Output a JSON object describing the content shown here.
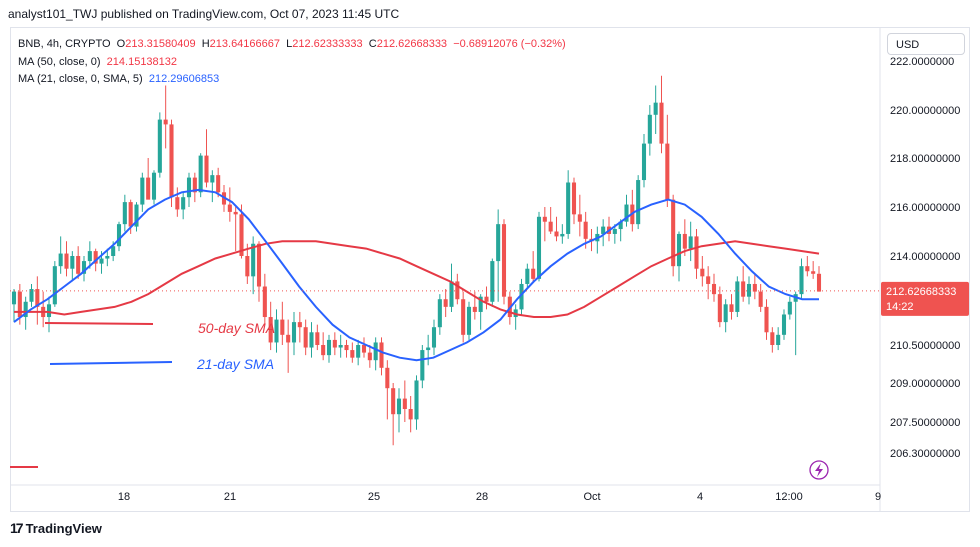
{
  "header": {
    "published": "analyst101_TWJ published on TradingView.com, Oct 07, 2023 11:45 UTC"
  },
  "legend": {
    "symbol": "BNB, 4h, CRYPTO",
    "o_key": "O",
    "o_val": "213.31580409",
    "h_key": "H",
    "h_val": "213.64166667",
    "l_key": "L",
    "l_val": "212.62333333",
    "c_key": "C",
    "c_val": "212.62668333",
    "change": "−0.68912076 (−0.32%)",
    "ma50_label": "MA (50, close, 0)",
    "ma50_val": "214.15138132",
    "ma21_label": "MA (21, close, 0, SMA, 5)",
    "ma21_val": "212.29606853"
  },
  "currency_button": "USD",
  "footer": {
    "brand": "TradingView",
    "logo": "17"
  },
  "colors": {
    "up": "#26a69a",
    "down": "#ef5350",
    "ma50": "#e53945",
    "ma21": "#2962ff",
    "price_tag": "#ef5350"
  },
  "chart_data": {
    "type": "candlestick",
    "symbol": "BNB",
    "timeframe": "4h",
    "y_ticks": [
      "222.0000000",
      "220.00000000",
      "218.00000000",
      "216.00000000",
      "214.00000000",
      "210.50000000",
      "209.00000000",
      "207.50000000",
      "206.30000000"
    ],
    "x_ticks": [
      "18",
      "21",
      "25",
      "28",
      "Oct",
      "4",
      "12:00",
      "9"
    ],
    "last_price": "212.62668333",
    "countdown": "14:22",
    "annotations": {
      "ma50": "50-day SMA",
      "ma21": "21-day SMA"
    },
    "candles_ohlc": [
      [
        212.1,
        212.7,
        211.4,
        212.6
      ],
      [
        212.6,
        212.9,
        211.3,
        211.6
      ],
      [
        211.6,
        212.4,
        211.1,
        212.2
      ],
      [
        212.2,
        212.9,
        212.0,
        212.7
      ],
      [
        212.7,
        213.2,
        211.3,
        212.0
      ],
      [
        212.0,
        212.6,
        211.2,
        211.6
      ],
      [
        211.6,
        212.4,
        211.0,
        212.1
      ],
      [
        212.1,
        213.8,
        212.0,
        213.6
      ],
      [
        213.6,
        214.8,
        213.3,
        214.1
      ],
      [
        214.1,
        214.6,
        213.2,
        213.5
      ],
      [
        213.5,
        214.2,
        213.0,
        214.0
      ],
      [
        214.0,
        214.4,
        213.1,
        213.3
      ],
      [
        213.3,
        214.0,
        213.0,
        213.8
      ],
      [
        213.8,
        214.6,
        213.5,
        214.2
      ],
      [
        214.2,
        214.3,
        213.4,
        213.7
      ],
      [
        213.7,
        214.2,
        213.3,
        213.9
      ],
      [
        213.9,
        214.3,
        213.6,
        214.0
      ],
      [
        214.0,
        214.6,
        213.8,
        214.4
      ],
      [
        214.4,
        215.4,
        214.2,
        215.3
      ],
      [
        215.3,
        216.5,
        215.0,
        216.2
      ],
      [
        216.2,
        216.3,
        214.9,
        215.2
      ],
      [
        215.2,
        216.2,
        215.0,
        216.1
      ],
      [
        216.1,
        217.4,
        215.8,
        217.2
      ],
      [
        217.2,
        218.0,
        216.7,
        216.3
      ],
      [
        216.3,
        217.5,
        216.1,
        217.4
      ],
      [
        217.4,
        219.9,
        217.2,
        219.6
      ],
      [
        219.6,
        221.0,
        218.4,
        219.4
      ],
      [
        219.4,
        219.6,
        216.0,
        216.4
      ],
      [
        216.4,
        216.8,
        215.6,
        215.9
      ],
      [
        215.9,
        216.6,
        215.5,
        216.4
      ],
      [
        216.4,
        217.4,
        216.0,
        217.2
      ],
      [
        217.2,
        217.4,
        216.2,
        216.6
      ],
      [
        216.6,
        218.2,
        216.4,
        218.1
      ],
      [
        218.1,
        219.2,
        216.8,
        217.0
      ],
      [
        217.0,
        217.5,
        216.2,
        217.3
      ],
      [
        217.3,
        217.6,
        216.4,
        216.6
      ],
      [
        216.6,
        216.9,
        215.8,
        216.1
      ],
      [
        216.1,
        216.8,
        215.4,
        215.8
      ],
      [
        215.8,
        216.0,
        214.2,
        215.7
      ],
      [
        215.7,
        216.1,
        213.9,
        214.0
      ],
      [
        214.0,
        214.5,
        212.9,
        213.2
      ],
      [
        213.2,
        214.8,
        212.5,
        214.5
      ],
      [
        214.5,
        214.6,
        212.2,
        212.8
      ],
      [
        212.8,
        213.3,
        211.3,
        211.6
      ],
      [
        211.6,
        212.2,
        210.3,
        210.6
      ],
      [
        210.6,
        211.9,
        210.2,
        211.5
      ],
      [
        211.5,
        212.2,
        210.5,
        210.9
      ],
      [
        210.9,
        211.5,
        209.4,
        210.6
      ],
      [
        210.6,
        211.8,
        210.1,
        211.4
      ],
      [
        211.4,
        211.8,
        210.6,
        211.2
      ],
      [
        211.2,
        211.5,
        210.1,
        210.4
      ],
      [
        210.4,
        211.4,
        210.0,
        211.0
      ],
      [
        211.0,
        211.3,
        210.3,
        210.5
      ],
      [
        210.5,
        211.0,
        209.9,
        210.1
      ],
      [
        210.1,
        210.9,
        209.8,
        210.7
      ],
      [
        210.7,
        211.0,
        210.1,
        210.4
      ],
      [
        210.4,
        210.9,
        210.0,
        210.5
      ],
      [
        210.5,
        210.7,
        210.0,
        210.3
      ],
      [
        210.3,
        210.6,
        209.8,
        210.0
      ],
      [
        210.0,
        210.7,
        209.7,
        210.5
      ],
      [
        210.5,
        210.8,
        210.0,
        210.2
      ],
      [
        210.2,
        210.5,
        209.6,
        209.9
      ],
      [
        209.9,
        210.8,
        209.5,
        210.6
      ],
      [
        210.6,
        210.8,
        209.3,
        209.6
      ],
      [
        209.6,
        209.9,
        207.6,
        208.8
      ],
      [
        208.8,
        209.0,
        206.6,
        207.8
      ],
      [
        207.8,
        208.8,
        207.1,
        208.4
      ],
      [
        208.4,
        209.1,
        207.5,
        208.0
      ],
      [
        208.0,
        208.5,
        207.1,
        207.6
      ],
      [
        207.6,
        209.3,
        207.2,
        209.1
      ],
      [
        209.1,
        210.5,
        208.8,
        210.3
      ],
      [
        210.3,
        210.9,
        209.7,
        210.4
      ],
      [
        210.4,
        211.5,
        210.1,
        211.2
      ],
      [
        211.2,
        212.5,
        210.9,
        212.3
      ],
      [
        212.3,
        212.7,
        211.6,
        212.0
      ],
      [
        212.0,
        213.7,
        211.8,
        213.0
      ],
      [
        213.0,
        213.3,
        212.1,
        212.3
      ],
      [
        212.3,
        212.6,
        210.6,
        210.9
      ],
      [
        210.9,
        212.2,
        210.7,
        212.0
      ],
      [
        212.0,
        212.6,
        211.5,
        211.8
      ],
      [
        211.8,
        212.5,
        211.1,
        212.4
      ],
      [
        212.4,
        212.8,
        211.9,
        212.2
      ],
      [
        212.2,
        213.9,
        212.0,
        213.8
      ],
      [
        213.8,
        215.9,
        212.2,
        215.3
      ],
      [
        215.3,
        215.5,
        212.1,
        212.4
      ],
      [
        212.4,
        212.6,
        211.3,
        211.6
      ],
      [
        211.6,
        212.1,
        211.1,
        211.9
      ],
      [
        211.9,
        213.1,
        211.7,
        212.9
      ],
      [
        212.9,
        213.7,
        212.7,
        213.5
      ],
      [
        213.5,
        214.2,
        213.0,
        213.1
      ],
      [
        213.1,
        215.8,
        213.0,
        215.6
      ],
      [
        215.6,
        216.0,
        214.6,
        215.4
      ],
      [
        215.4,
        216.0,
        214.9,
        215.0
      ],
      [
        215.0,
        215.6,
        214.6,
        214.8
      ],
      [
        214.8,
        215.3,
        214.5,
        214.9
      ],
      [
        214.9,
        217.5,
        214.7,
        217.0
      ],
      [
        217.0,
        217.2,
        215.3,
        215.7
      ],
      [
        215.7,
        216.5,
        214.8,
        215.4
      ],
      [
        215.4,
        215.8,
        214.3,
        214.7
      ],
      [
        214.7,
        215.1,
        214.2,
        214.6
      ],
      [
        214.6,
        215.2,
        214.1,
        214.9
      ],
      [
        214.9,
        215.5,
        214.4,
        215.2
      ],
      [
        215.2,
        215.6,
        214.6,
        214.9
      ],
      [
        214.9,
        215.3,
        214.5,
        215.1
      ],
      [
        215.1,
        215.5,
        214.6,
        215.4
      ],
      [
        215.4,
        216.5,
        215.2,
        216.1
      ],
      [
        216.1,
        216.7,
        215.0,
        215.3
      ],
      [
        215.3,
        217.3,
        215.1,
        217.1
      ],
      [
        217.1,
        219.0,
        216.8,
        218.6
      ],
      [
        218.6,
        220.2,
        218.1,
        219.8
      ],
      [
        219.8,
        221.0,
        219.0,
        220.3
      ],
      [
        220.3,
        221.4,
        218.2,
        218.6
      ],
      [
        218.6,
        219.8,
        216.0,
        216.3
      ],
      [
        216.3,
        216.5,
        213.2,
        213.6
      ],
      [
        213.6,
        215.0,
        213.0,
        214.9
      ],
      [
        214.9,
        215.5,
        214.0,
        214.3
      ],
      [
        214.3,
        215.4,
        213.8,
        214.8
      ],
      [
        214.8,
        215.1,
        213.1,
        213.5
      ],
      [
        213.5,
        214.0,
        212.8,
        213.2
      ],
      [
        213.2,
        213.6,
        212.3,
        212.9
      ],
      [
        212.9,
        213.3,
        212.2,
        212.5
      ],
      [
        212.5,
        212.8,
        211.2,
        211.4
      ],
      [
        211.4,
        212.3,
        211.0,
        212.1
      ],
      [
        212.1,
        212.5,
        211.5,
        211.8
      ],
      [
        211.8,
        213.2,
        211.6,
        213.0
      ],
      [
        213.0,
        213.6,
        212.2,
        212.4
      ],
      [
        212.4,
        213.2,
        212.1,
        212.9
      ],
      [
        212.9,
        213.3,
        212.3,
        212.6
      ],
      [
        212.6,
        212.9,
        211.8,
        212.0
      ],
      [
        212.0,
        212.3,
        210.7,
        211.0
      ],
      [
        211.0,
        211.2,
        210.2,
        210.5
      ],
      [
        210.5,
        211.2,
        210.3,
        210.9
      ],
      [
        210.9,
        211.9,
        210.7,
        211.7
      ],
      [
        211.7,
        212.4,
        211.5,
        212.2
      ],
      [
        212.2,
        212.6,
        210.1,
        212.5
      ],
      [
        212.5,
        213.9,
        212.3,
        213.6
      ],
      [
        213.6,
        214.0,
        213.2,
        213.4
      ],
      [
        213.4,
        213.8,
        213.1,
        213.3
      ],
      [
        213.3,
        213.6,
        212.6,
        212.6
      ]
    ],
    "ma50_values": [
      211.8,
      211.8,
      211.8,
      211.7,
      211.8,
      211.9,
      212.0,
      212.2,
      212.5,
      212.9,
      213.3,
      213.6,
      213.9,
      214.1,
      214.3,
      214.5,
      214.6,
      214.6,
      214.6,
      214.5,
      214.4,
      214.3,
      214.1,
      213.9,
      213.6,
      213.3,
      213.0,
      212.6,
      212.2,
      211.9,
      211.7,
      211.6,
      211.6,
      211.7,
      212.0,
      212.4,
      212.8,
      213.2,
      213.6,
      213.9,
      214.2,
      214.4,
      214.5,
      214.6,
      214.5,
      214.4,
      214.3,
      214.2,
      214.1
    ],
    "ma21_values": [
      211.4,
      211.9,
      212.3,
      212.8,
      213.3,
      213.9,
      214.5,
      215.2,
      215.9,
      216.3,
      216.6,
      216.7,
      216.6,
      216.2,
      215.5,
      214.6,
      213.7,
      212.8,
      212.0,
      211.3,
      210.8,
      210.5,
      210.2,
      210.0,
      209.9,
      210.0,
      210.3,
      210.6,
      211.0,
      211.5,
      212.3,
      213.0,
      213.6,
      214.1,
      214.5,
      214.8,
      215.3,
      215.8,
      216.1,
      216.3,
      216.1,
      215.6,
      214.9,
      214.1,
      213.4,
      212.8,
      212.5,
      212.3,
      212.3
    ]
  }
}
